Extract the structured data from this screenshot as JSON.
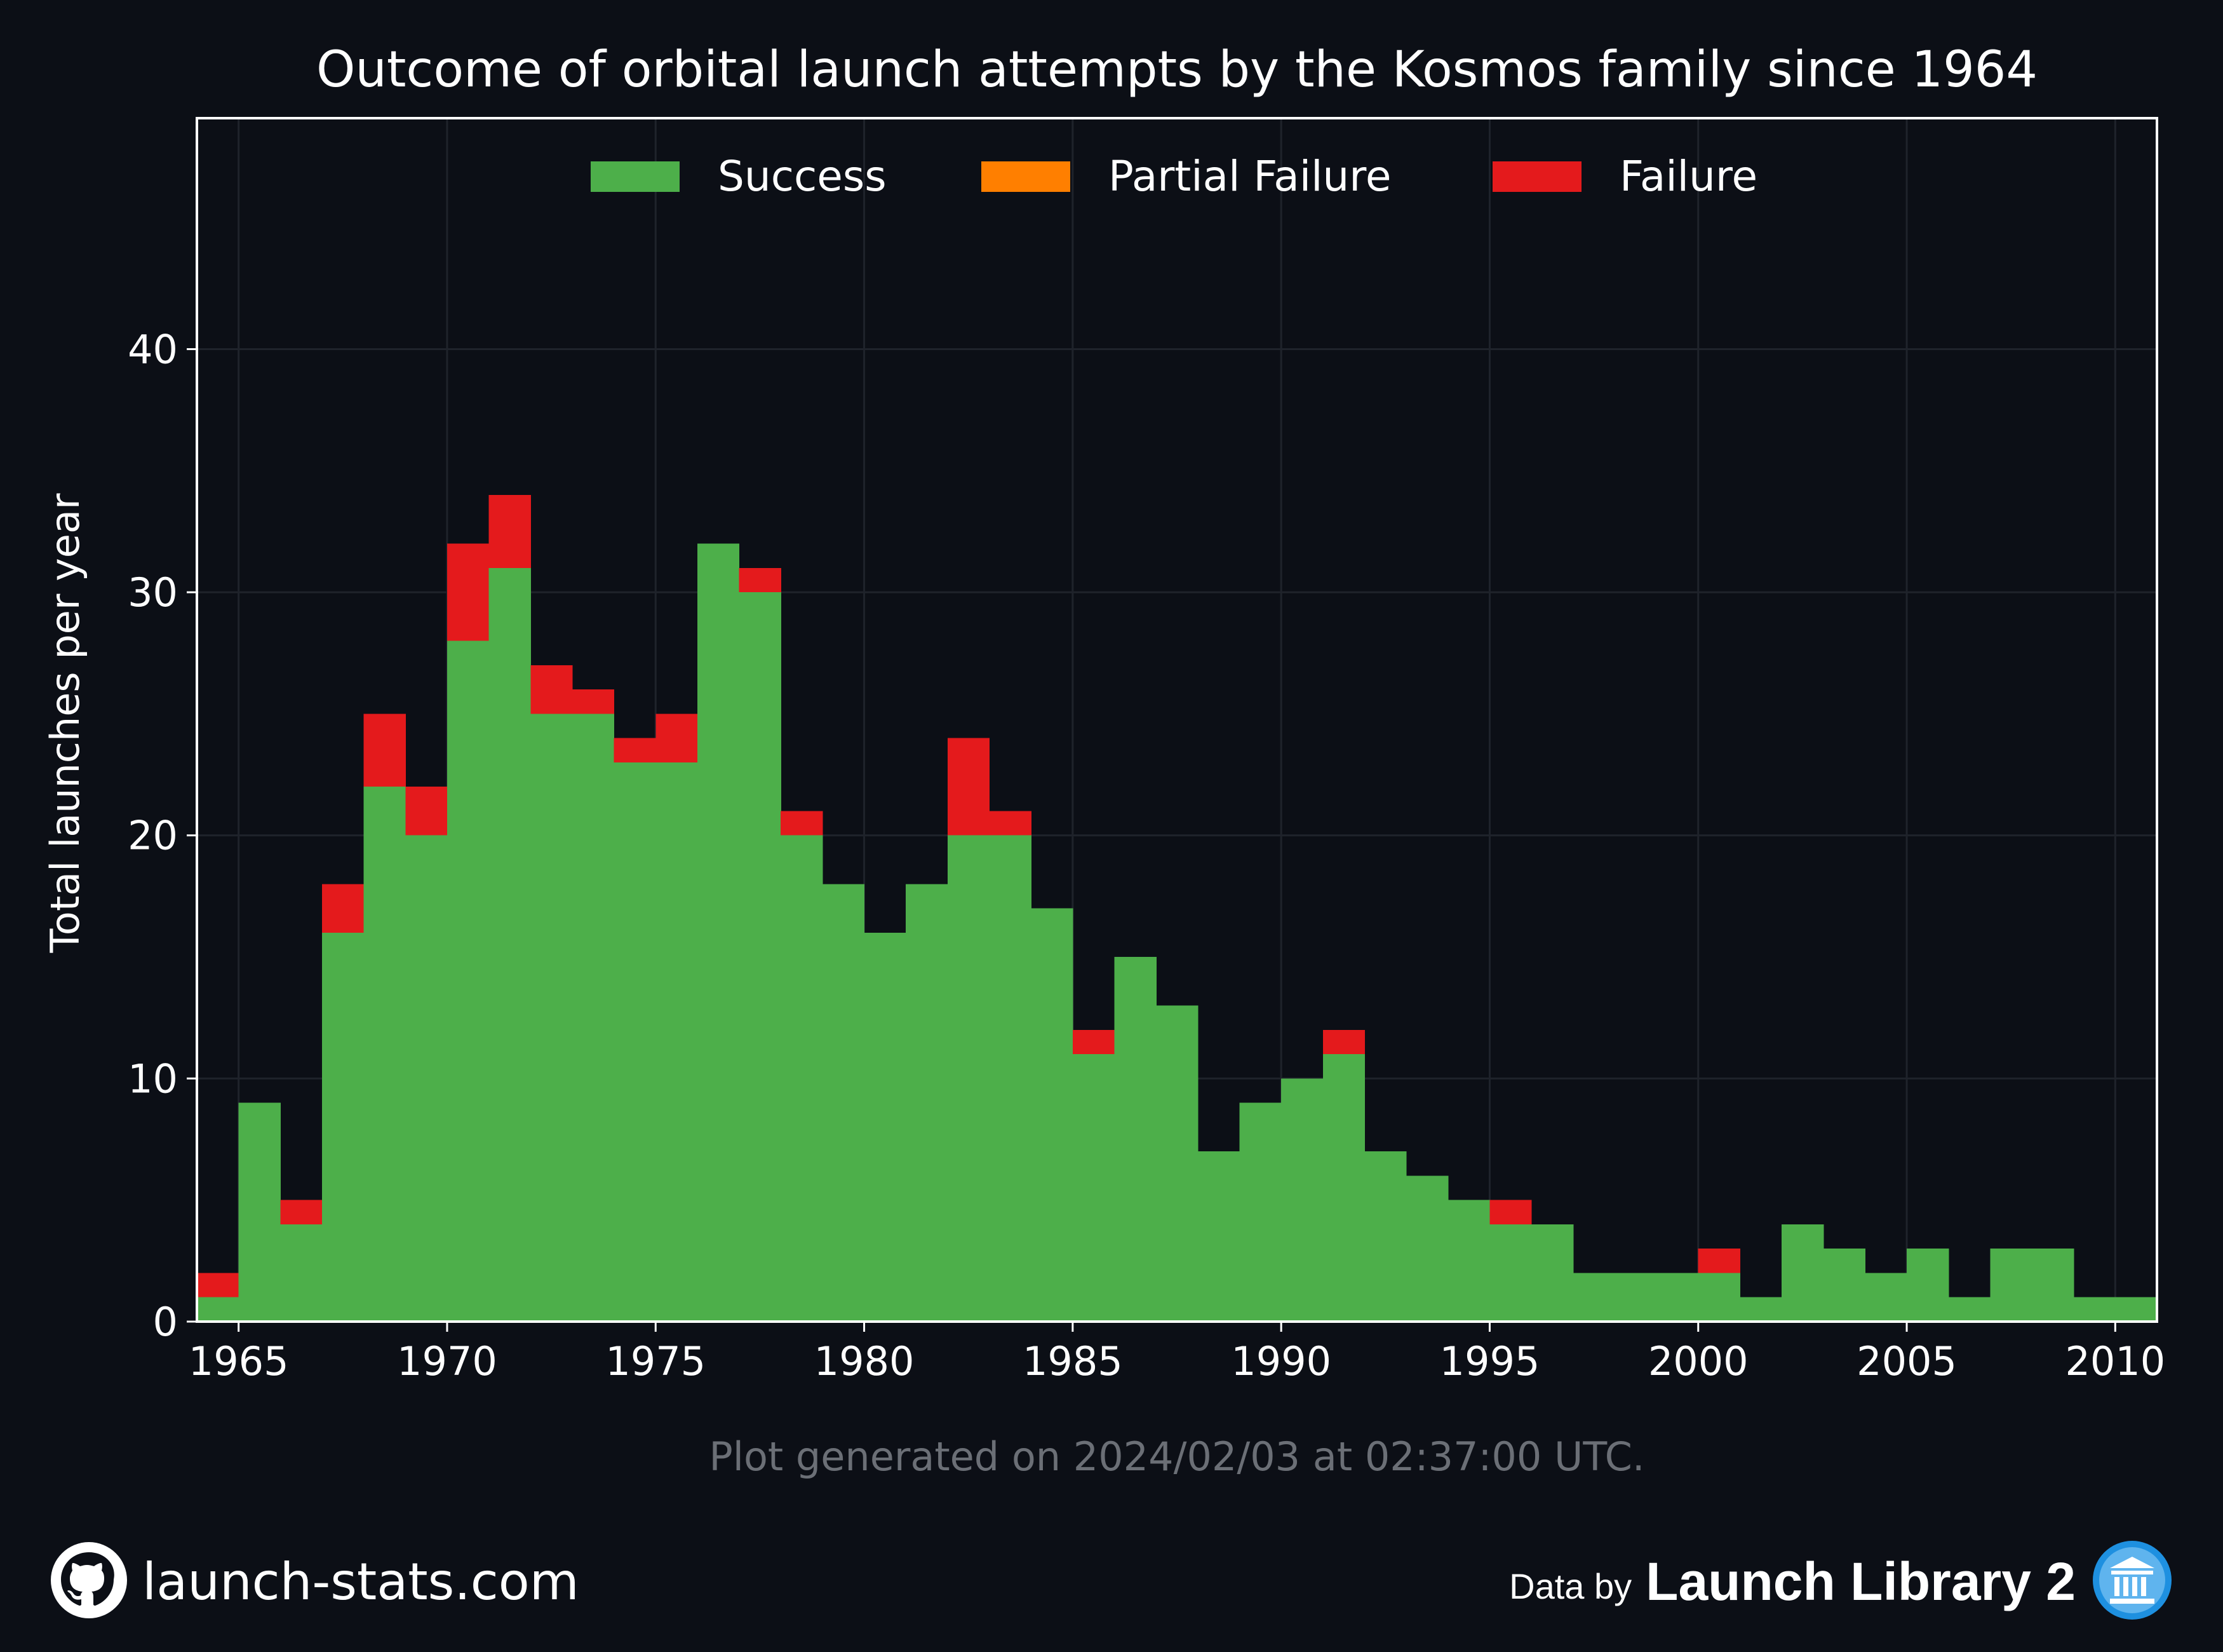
{
  "chart_data": {
    "type": "bar",
    "stacked": true,
    "title": "Outcome of orbital launch attempts by the Kosmos family since 1964",
    "xlabel": "",
    "ylabel": "Total launches per year",
    "x": [
      1964,
      1965,
      1966,
      1967,
      1968,
      1969,
      1970,
      1971,
      1972,
      1973,
      1974,
      1975,
      1976,
      1977,
      1978,
      1979,
      1980,
      1981,
      1982,
      1983,
      1984,
      1985,
      1986,
      1987,
      1988,
      1989,
      1990,
      1991,
      1992,
      1993,
      1994,
      1995,
      1996,
      1997,
      1998,
      1999,
      2000,
      2001,
      2002,
      2003,
      2004,
      2005,
      2006,
      2007,
      2008,
      2009,
      2010
    ],
    "xlim": [
      1964,
      2011
    ],
    "ylim": [
      0,
      49.5
    ],
    "xticks": [
      "1965",
      "1970",
      "1975",
      "1980",
      "1985",
      "1990",
      "1995",
      "2000",
      "2005",
      "2010"
    ],
    "yticks": [
      "0",
      "10",
      "20",
      "30",
      "40"
    ],
    "grid": true,
    "legend": "top-center",
    "series": [
      {
        "name": "Success",
        "color": "#4daf4a",
        "values": [
          1,
          9,
          4,
          16,
          22,
          20,
          28,
          31,
          25,
          25,
          23,
          23,
          32,
          30,
          20,
          18,
          16,
          18,
          20,
          20,
          17,
          11,
          15,
          13,
          7,
          9,
          10,
          11,
          7,
          6,
          5,
          4,
          4,
          2,
          2,
          2,
          2,
          1,
          4,
          3,
          2,
          3,
          1,
          3,
          3,
          1,
          1
        ]
      },
      {
        "name": "Partial Failure",
        "color": "#ff7f00",
        "values": [
          0,
          0,
          0,
          0,
          0,
          0,
          0,
          0,
          0,
          0,
          0,
          0,
          0,
          0,
          0,
          0,
          0,
          0,
          0,
          0,
          0,
          0,
          0,
          0,
          0,
          0,
          0,
          0,
          0,
          0,
          0,
          0,
          0,
          0,
          0,
          0,
          0,
          0,
          0,
          0,
          0,
          0,
          0,
          0,
          0,
          0,
          0
        ]
      },
      {
        "name": "Failure",
        "color": "#e41a1c",
        "values": [
          1,
          0,
          1,
          2,
          3,
          2,
          4,
          3,
          2,
          1,
          1,
          2,
          0,
          1,
          1,
          0,
          0,
          0,
          4,
          1,
          0,
          1,
          0,
          0,
          0,
          0,
          0,
          1,
          0,
          0,
          0,
          1,
          0,
          0,
          0,
          0,
          1,
          0,
          0,
          0,
          0,
          0,
          0,
          0,
          0,
          0,
          0
        ]
      }
    ],
    "annotation": "Plot generated on 2024/02/03 at 02:37:00 UTC."
  },
  "footer": {
    "site": "launch-stats.com",
    "data_by": "Data by",
    "provider": "Launch Library 2",
    "site_icon": "github-icon",
    "provider_icon": "library-icon"
  },
  "colors": {
    "background": "#0c0f16",
    "grid": "#1f232b",
    "axis": "#ffffff",
    "annotation": "#6b6f76",
    "provider_icon": "#1e90e0"
  }
}
